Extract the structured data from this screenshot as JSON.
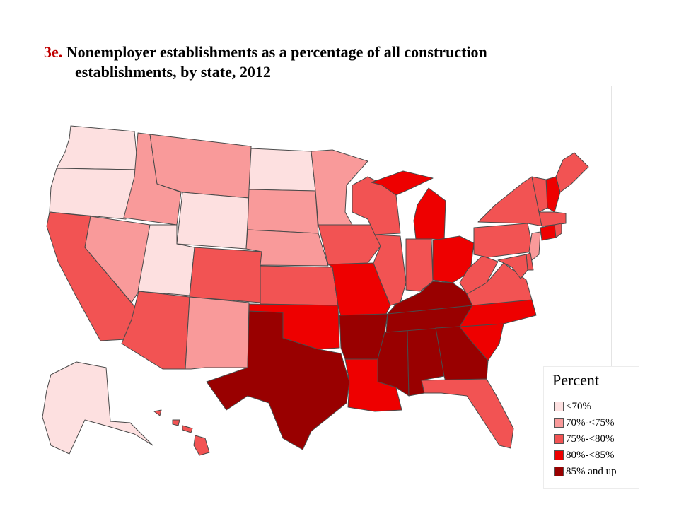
{
  "title": {
    "number": "3e.",
    "line1": "Nonemployer establishments as a percentage of all construction",
    "line2": "establishments, by state, 2012"
  },
  "legend": {
    "title": "Percent",
    "items": [
      {
        "label": "<70%",
        "color": "#fde0e0"
      },
      {
        "label": "70%-<75%",
        "color": "#f99a9a"
      },
      {
        "label": "75%-<80%",
        "color": "#f25353"
      },
      {
        "label": "80%-<85%",
        "color": "#ee0000"
      },
      {
        "label": "85% and up",
        "color": "#990000"
      }
    ]
  },
  "states": {
    "WA": 0,
    "OR": 0,
    "ID": 1,
    "MT": 1,
    "WY": 0,
    "ND": 0,
    "SD": 1,
    "MN": 1,
    "CA": 2,
    "NV": 1,
    "UT": 0,
    "CO": 2,
    "NE": 1,
    "IA": 2,
    "WI": 2,
    "AZ": 2,
    "NM": 1,
    "KS": 2,
    "MO": 3,
    "IL": 2,
    "IN": 2,
    "MI": 3,
    "OH": 3,
    "TX": 4,
    "OK": 3,
    "AR": 4,
    "LA": 3,
    "MS": 4,
    "AL": 4,
    "TN": 4,
    "KY": 4,
    "GA": 4,
    "FL": 2,
    "SC": 3,
    "NC": 3,
    "VA": 2,
    "WV": 2,
    "PA": 2,
    "NY": 2,
    "ME": 2,
    "NH": 3,
    "VT": 2,
    "MA": 2,
    "CT": 3,
    "RI": 2,
    "NJ": 1,
    "DE": 2,
    "MD": 2,
    "AK": 0,
    "HI": 2
  }
}
